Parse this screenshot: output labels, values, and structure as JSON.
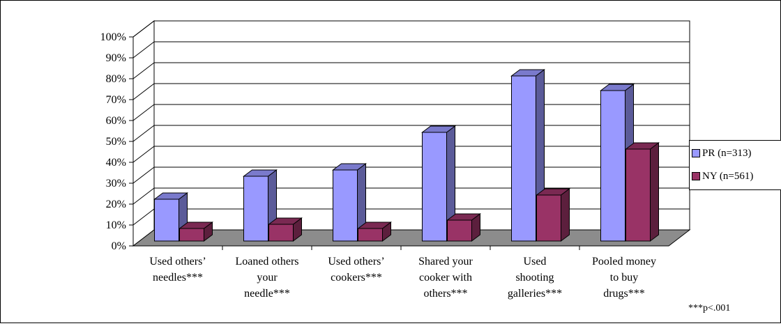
{
  "chart_data": {
    "type": "bar",
    "title": "",
    "xlabel": "",
    "ylabel": "",
    "ylim": [
      0,
      100
    ],
    "y_ticks": [
      "0%",
      "10%",
      "20%",
      "30%",
      "40%",
      "50%",
      "60%",
      "70%",
      "80%",
      "90%",
      "100%"
    ],
    "categories": [
      [
        "Used others’",
        "needles***"
      ],
      [
        "Loaned others",
        "your",
        "needle***"
      ],
      [
        "Used others’",
        "cookers***"
      ],
      [
        "Shared your",
        "cooker with",
        "others***"
      ],
      [
        "Used",
        "shooting",
        "galleries***"
      ],
      [
        "Pooled money",
        "to buy",
        "drugs***"
      ]
    ],
    "series": [
      {
        "name": "PR (n=313)",
        "values": [
          20,
          31,
          34,
          52,
          79,
          72
        ],
        "color": "#9999ff",
        "side_color": "#5b5b99",
        "top_color": "#7a7acc"
      },
      {
        "name": "NY (n=561)",
        "values": [
          6,
          8,
          6,
          10,
          22,
          44
        ],
        "color": "#993366",
        "side_color": "#5c1f3d",
        "top_color": "#7a2952"
      }
    ],
    "grid": true,
    "legend_position": "right",
    "footnote": "***p<.001"
  }
}
